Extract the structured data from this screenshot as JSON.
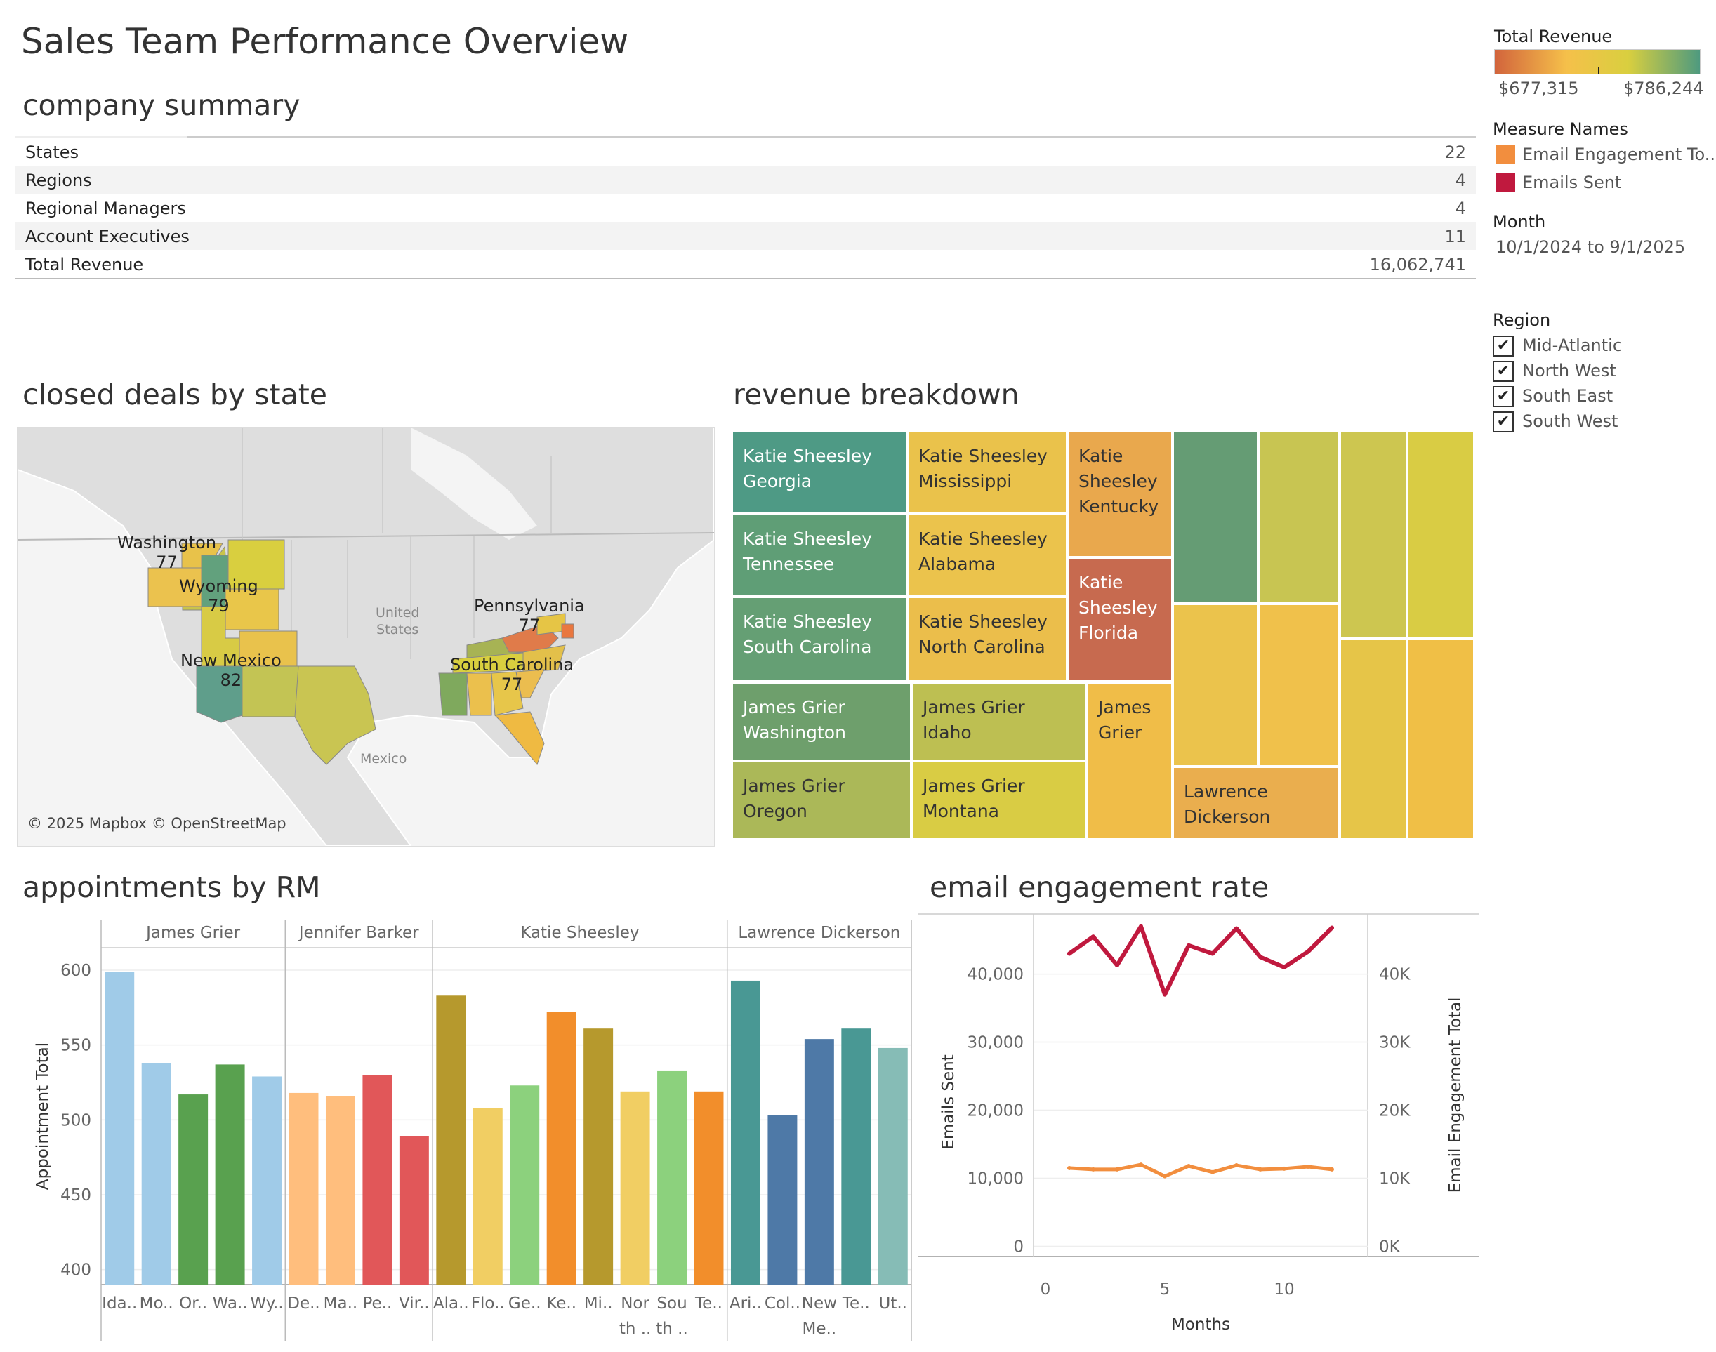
{
  "page": {
    "title": "Sales Team Performance Overview"
  },
  "summary": {
    "title": "company summary",
    "rows": [
      {
        "label": "States",
        "value": "22"
      },
      {
        "label": "Regions",
        "value": "4"
      },
      {
        "label": "Regional Managers",
        "value": "4"
      },
      {
        "label": "Account Executives",
        "value": "11"
      },
      {
        "label": "Total Revenue",
        "value": "16,062,741"
      }
    ]
  },
  "legend": {
    "revenue_title": "Total Revenue",
    "revenue_min": "$677,315",
    "revenue_max": "$786,244",
    "colors": {
      "low": "#d2643c",
      "mid": "#f5c04a",
      "mid2": "#d9cf3f",
      "high": "#4e9a7f"
    },
    "measure_title": "Measure Names",
    "measures": [
      {
        "label": "Email Engagement To..",
        "color": "#f28e3e"
      },
      {
        "label": "Emails Sent",
        "color": "#c0193e"
      }
    ],
    "month_title": "Month",
    "month_value": "10/1/2024 to 9/1/2025",
    "region_title": "Region",
    "regions": [
      {
        "label": "Mid-Atlantic",
        "checked": "✔"
      },
      {
        "label": "North West",
        "checked": "✔"
      },
      {
        "label": "South East",
        "checked": "✔"
      },
      {
        "label": "South West",
        "checked": "✔"
      }
    ]
  },
  "map": {
    "title": "closed deals by state",
    "labels": [
      {
        "state": "Washington",
        "value": "77"
      },
      {
        "state": "Wyoming",
        "value": "79"
      },
      {
        "state": "Pennsylvania",
        "value": "77"
      },
      {
        "state": "New Mexico",
        "value": "82"
      },
      {
        "state": "South Carolina",
        "value": "77"
      }
    ],
    "place_us": "United\nStates",
    "place_mexico": "Mexico",
    "attribution": "© 2025 Mapbox © OpenStreetMap"
  },
  "treemap": {
    "title": "revenue breakdown",
    "cells": [
      {
        "line1": "Katie Sheesley",
        "line2": "Georgia",
        "line3": ""
      },
      {
        "line1": "Katie Sheesley",
        "line2": "Mississippi",
        "line3": ""
      },
      {
        "line1": "Katie",
        "line2": "Sheesley",
        "line3": "Kentucky"
      },
      {
        "line1": "Katie Sheesley",
        "line2": "Tennessee",
        "line3": ""
      },
      {
        "line1": "Katie Sheesley",
        "line2": "Alabama",
        "line3": ""
      },
      {
        "line1": "Katie",
        "line2": "Sheesley",
        "line3": "Florida"
      },
      {
        "line1": "Katie Sheesley",
        "line2": "South Carolina",
        "line3": ""
      },
      {
        "line1": "Katie Sheesley",
        "line2": "North Carolina",
        "line3": ""
      },
      {
        "line1": "James Grier",
        "line2": "Washington",
        "line3": ""
      },
      {
        "line1": "James Grier",
        "line2": "Idaho",
        "line3": ""
      },
      {
        "line1": "James",
        "line2": "Grier",
        "line3": ""
      },
      {
        "line1": "James Grier",
        "line2": "Oregon",
        "line3": ""
      },
      {
        "line1": "James Grier",
        "line2": "Montana",
        "line3": ""
      },
      {
        "line1": "Lawrence",
        "line2": "Dickerson",
        "line3": ""
      }
    ]
  },
  "appointments": {
    "title": "appointments by RM",
    "chart_data": {
      "type": "bar",
      "ylabel": "Appointment Total",
      "ylim": [
        390,
        615
      ],
      "yticks": [
        400,
        450,
        500,
        550,
        600
      ],
      "groups": [
        {
          "name": "James Grier",
          "bars": [
            {
              "label": "Ida..",
              "value": 599,
              "color": "#a0cbe8"
            },
            {
              "label": "Mo..",
              "value": 538,
              "color": "#a0cbe8"
            },
            {
              "label": "Or..",
              "value": 517,
              "color": "#59a14f"
            },
            {
              "label": "Wa..",
              "value": 537,
              "color": "#59a14f"
            },
            {
              "label": "Wy..",
              "value": 529,
              "color": "#a0cbe8"
            }
          ]
        },
        {
          "name": "Jennifer Barker",
          "bars": [
            {
              "label": "De..",
              "value": 518,
              "color": "#ffbe7d"
            },
            {
              "label": "Ma..",
              "value": 516,
              "color": "#ffbe7d"
            },
            {
              "label": "Pe..",
              "value": 530,
              "color": "#e15759"
            },
            {
              "label": "Vir..",
              "value": 489,
              "color": "#e15759"
            }
          ]
        },
        {
          "name": "Katie Sheesley",
          "bars": [
            {
              "label": "Ala..",
              "value": 583,
              "color": "#b6992d"
            },
            {
              "label": "Flo..",
              "value": 508,
              "color": "#f1ce63"
            },
            {
              "label": "Ge..",
              "value": 523,
              "color": "#8cd17d"
            },
            {
              "label": "Ke..",
              "value": 572,
              "color": "#f28e2b"
            },
            {
              "label": "Mi..",
              "value": 561,
              "color": "#b6992d"
            },
            {
              "label": "Nor th ..",
              "value": 519,
              "color": "#f1ce63"
            },
            {
              "label": "Sou th ..",
              "value": 533,
              "color": "#8cd17d"
            },
            {
              "label": "Te..",
              "value": 519,
              "color": "#f28e2b"
            }
          ]
        },
        {
          "name": "Lawrence Dickerson",
          "bars": [
            {
              "label": "Ari..",
              "value": 593,
              "color": "#499894"
            },
            {
              "label": "Col..",
              "value": 503,
              "color": "#4e79a7"
            },
            {
              "label": "New Me..",
              "value": 554,
              "color": "#4e79a7"
            },
            {
              "label": "Te..",
              "value": 561,
              "color": "#499894"
            },
            {
              "label": "Ut..",
              "value": 548,
              "color": "#86bcb6"
            }
          ]
        }
      ]
    }
  },
  "email": {
    "title": "email engagement rate",
    "chart_data": {
      "type": "line",
      "xlabel": "Months",
      "ylabel_left": "Emails Sent",
      "ylabel_right": "Email Engagement Total",
      "xlim": [
        -0.5,
        13.5
      ],
      "xticks": [
        0,
        5,
        10
      ],
      "ylim_left": [
        -1500,
        48000
      ],
      "yticks_left": [
        {
          "v": 0,
          "t": "0"
        },
        {
          "v": 10000,
          "t": "10,000"
        },
        {
          "v": 20000,
          "t": "20,000"
        },
        {
          "v": 30000,
          "t": "30,000"
        },
        {
          "v": 40000,
          "t": "40,000"
        }
      ],
      "ylim_right": [
        -1500,
        48000
      ],
      "yticks_right": [
        {
          "v": 0,
          "t": "0K"
        },
        {
          "v": 10000,
          "t": "10K"
        },
        {
          "v": 20000,
          "t": "20K"
        },
        {
          "v": 30000,
          "t": "30K"
        },
        {
          "v": 40000,
          "t": "40K"
        }
      ],
      "series": [
        {
          "name": "Emails Sent",
          "color": "#c0193e",
          "x": [
            1,
            2,
            3,
            4,
            5,
            6,
            7,
            8,
            9,
            10,
            11,
            12
          ],
          "y": [
            43000,
            45500,
            41300,
            47000,
            37000,
            44200,
            43000,
            46700,
            42500,
            41000,
            43300,
            46800
          ]
        },
        {
          "name": "Email Engagement To..",
          "color": "#f28e3e",
          "x": [
            1,
            2,
            3,
            4,
            5,
            6,
            7,
            8,
            9,
            10,
            11,
            12
          ],
          "y": [
            11500,
            11300,
            11300,
            12000,
            10300,
            11800,
            10900,
            11900,
            11300,
            11400,
            11700,
            11300
          ]
        }
      ]
    }
  }
}
